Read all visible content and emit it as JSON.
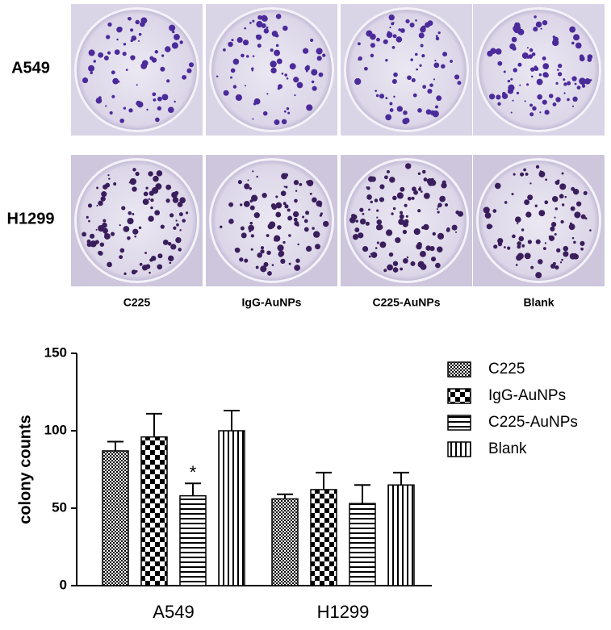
{
  "plates": {
    "rows": [
      "A549",
      "H1299"
    ],
    "columns": [
      "C225",
      "IgG-AuNPs",
      "C225-AuNPs",
      "Blank"
    ]
  },
  "chart_data": {
    "type": "bar",
    "ylabel": "colony counts",
    "categories": [
      "A549",
      "H1299"
    ],
    "series": [
      {
        "name": "C225",
        "color": "#000000",
        "pattern": "fine-checker",
        "values": [
          87,
          56
        ],
        "errors": [
          6,
          3
        ]
      },
      {
        "name": "IgG-AuNPs",
        "color": "#000000",
        "pattern": "checker",
        "values": [
          96,
          62
        ],
        "errors": [
          15,
          11
        ]
      },
      {
        "name": "C225-AuNPs",
        "color": "#000000",
        "pattern": "horizontal-lines",
        "values": [
          58,
          53
        ],
        "errors": [
          8,
          12
        ]
      },
      {
        "name": "Blank",
        "color": "#000000",
        "pattern": "vertical-lines",
        "values": [
          100,
          65
        ],
        "errors": [
          13,
          8
        ]
      }
    ],
    "annotations": [
      {
        "text": "*",
        "series": "C225-AuNPs",
        "category": "A549"
      }
    ],
    "ylim": [
      0,
      150
    ],
    "yticks": [
      0,
      50,
      100,
      150
    ],
    "legend": "upper right"
  }
}
